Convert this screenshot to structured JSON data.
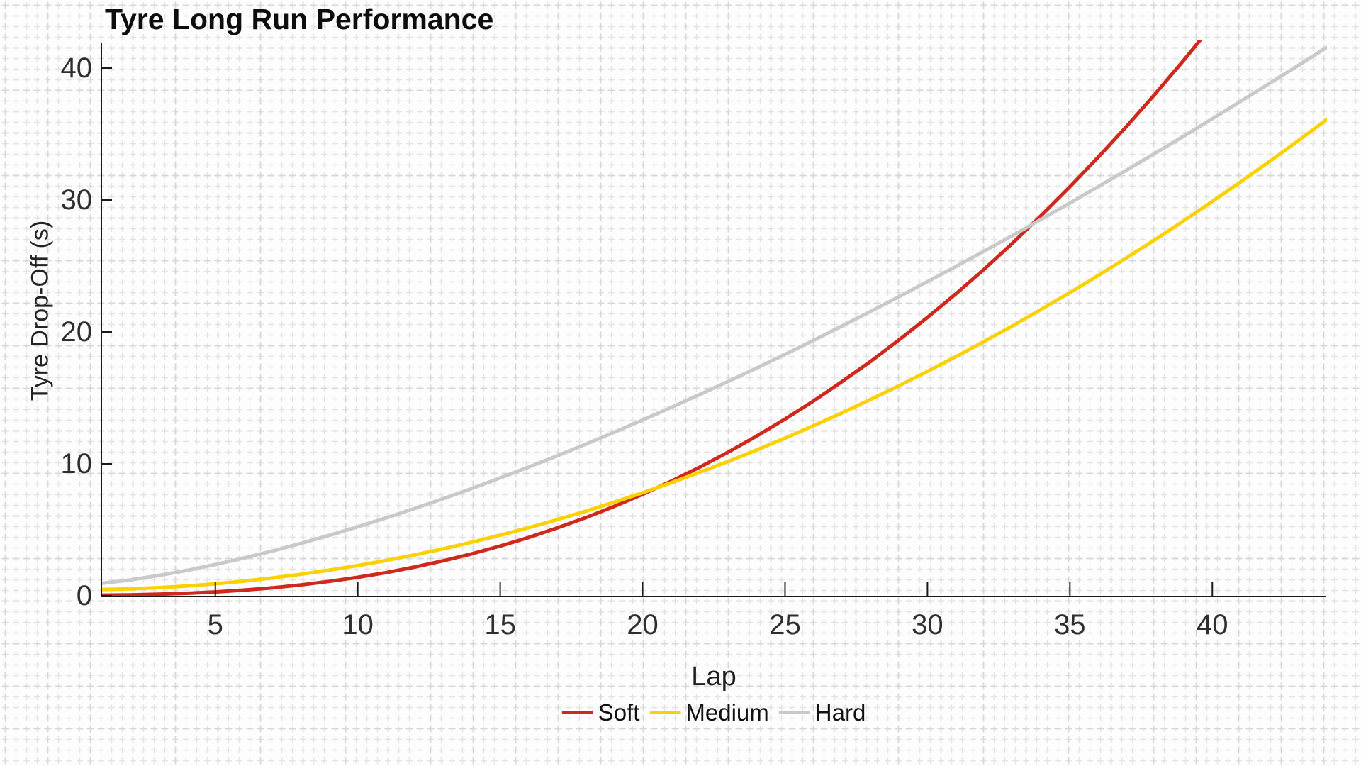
{
  "chart_data": {
    "type": "line",
    "title": "Tyre Long Run Performance",
    "xlabel": "Lap",
    "ylabel": "Tyre Drop-Off (s)",
    "xlim": [
      1,
      44
    ],
    "ylim": [
      0,
      42
    ],
    "x_ticks": [
      5,
      10,
      15,
      20,
      25,
      30,
      35,
      40
    ],
    "y_ticks": [
      0,
      10,
      20,
      30,
      40
    ],
    "grid": "faint dashed cross-grid across entire canvas",
    "legend_position": "bottom-center",
    "axis_color": "#1a1a1a",
    "tick_label_color": "#2e2e2e",
    "x": [
      1,
      2,
      3,
      4,
      5,
      6,
      7,
      8,
      9,
      10,
      11,
      12,
      13,
      14,
      15,
      16,
      17,
      18,
      19,
      20,
      21,
      22,
      23,
      24,
      25,
      26,
      27,
      28,
      29,
      30,
      31,
      32,
      33,
      34,
      35,
      36,
      37,
      38,
      39,
      40,
      41,
      42,
      43,
      44
    ],
    "series": [
      {
        "name": "Soft",
        "color": "#cf291d",
        "values": [
          0.05,
          0.07,
          0.12,
          0.19,
          0.29,
          0.43,
          0.6,
          0.82,
          1.09,
          1.4,
          1.76,
          2.18,
          2.65,
          3.18,
          3.77,
          4.42,
          5.14,
          5.92,
          6.77,
          7.69,
          8.68,
          9.74,
          10.88,
          12.1,
          13.39,
          14.77,
          16.23,
          17.76,
          19.39,
          21.1,
          22.89,
          24.78,
          26.76,
          28.84,
          31.0,
          33.26,
          35.61,
          38.06,
          40.61,
          43.26,
          null,
          null,
          null,
          null
        ]
      },
      {
        "name": "Medium",
        "color": "#fbd104",
        "values": [
          0.47,
          0.52,
          0.62,
          0.74,
          0.91,
          1.11,
          1.35,
          1.63,
          1.94,
          2.29,
          2.68,
          3.1,
          3.56,
          4.06,
          4.59,
          5.16,
          5.77,
          6.41,
          7.09,
          7.81,
          8.56,
          9.36,
          10.18,
          11.05,
          11.95,
          12.89,
          13.86,
          14.88,
          15.92,
          17.01,
          18.13,
          19.29,
          20.48,
          21.72,
          22.98,
          24.29,
          25.63,
          27.01,
          28.43,
          29.89,
          31.38,
          32.91,
          34.47,
          36.08
        ]
      },
      {
        "name": "Hard",
        "color": "#c9c9c9",
        "values": [
          0.94,
          1.2,
          1.53,
          1.92,
          2.37,
          2.86,
          3.39,
          3.97,
          4.58,
          5.23,
          5.91,
          6.62,
          7.36,
          8.13,
          8.93,
          9.76,
          10.61,
          11.49,
          12.39,
          13.32,
          14.27,
          15.25,
          16.24,
          17.26,
          18.3,
          19.36,
          20.45,
          21.55,
          22.67,
          23.81,
          24.96,
          26.14,
          27.33,
          28.55,
          29.77,
          31.02,
          32.28,
          33.56,
          34.85,
          36.16,
          37.49,
          38.83,
          40.18,
          41.55
        ]
      }
    ]
  }
}
